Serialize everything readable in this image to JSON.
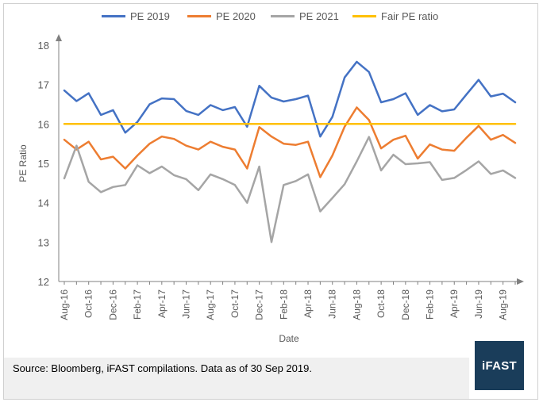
{
  "chart_data": {
    "type": "line",
    "title": "",
    "xlabel": "Date",
    "ylabel": "PE Ratio",
    "ylim": [
      12,
      18
    ],
    "yticks": [
      "12",
      "13",
      "14",
      "15",
      "16",
      "17",
      "18"
    ],
    "x": [
      "Aug-16",
      "Sep-16",
      "Oct-16",
      "Nov-16",
      "Dec-16",
      "Jan-17",
      "Feb-17",
      "Mar-17",
      "Apr-17",
      "May-17",
      "Jun-17",
      "Jul-17",
      "Aug-17",
      "Sep-17",
      "Oct-17",
      "Nov-17",
      "Dec-17",
      "Jan-18",
      "Feb-18",
      "Mar-18",
      "Apr-18",
      "May-18",
      "Jun-18",
      "Jul-18",
      "Aug-18",
      "Sep-18",
      "Oct-18",
      "Nov-18",
      "Dec-18",
      "Jan-19",
      "Feb-19",
      "Mar-19",
      "Apr-19",
      "May-19",
      "Jun-19",
      "Jul-19",
      "Aug-19",
      "Sep-19"
    ],
    "xtick_labels": [
      "Aug-16",
      "Oct-16",
      "Dec-16",
      "Feb-17",
      "Apr-17",
      "Jun-17",
      "Aug-17",
      "Oct-17",
      "Dec-17",
      "Feb-18",
      "Apr-18",
      "Jun-18",
      "Aug-18",
      "Oct-18",
      "Dec-18",
      "Feb-19",
      "Apr-19",
      "Jun-19",
      "Aug-19"
    ],
    "legend_position": "top",
    "grid": false,
    "series": [
      {
        "name": "PE 2019",
        "color": "#4472c4",
        "values": [
          16.85,
          16.58,
          16.78,
          16.23,
          16.35,
          15.78,
          16.05,
          16.5,
          16.65,
          16.63,
          16.33,
          16.23,
          16.48,
          16.35,
          16.43,
          15.93,
          16.97,
          16.67,
          16.57,
          16.63,
          16.72,
          15.68,
          16.18,
          17.18,
          17.58,
          17.32,
          16.55,
          16.63,
          16.78,
          16.23,
          16.48,
          16.32,
          16.37,
          16.75,
          17.12,
          16.7,
          16.77,
          16.55
        ]
      },
      {
        "name": "PE 2020",
        "color": "#ed7d31",
        "values": [
          15.6,
          15.35,
          15.55,
          15.1,
          15.17,
          14.87,
          15.2,
          15.5,
          15.68,
          15.62,
          15.45,
          15.35,
          15.55,
          15.42,
          15.35,
          14.87,
          15.92,
          15.68,
          15.5,
          15.47,
          15.55,
          14.65,
          15.2,
          15.93,
          16.42,
          16.1,
          15.38,
          15.6,
          15.7,
          15.12,
          15.48,
          15.35,
          15.32,
          15.65,
          15.95,
          15.6,
          15.72,
          15.52
        ]
      },
      {
        "name": "PE 2021",
        "color": "#a5a5a5",
        "values": [
          14.62,
          15.45,
          14.53,
          14.27,
          14.4,
          14.45,
          14.95,
          14.75,
          14.92,
          14.7,
          14.6,
          14.32,
          14.72,
          14.6,
          14.45,
          14.0,
          14.92,
          13.0,
          14.45,
          14.55,
          14.72,
          13.78,
          14.12,
          14.47,
          15.05,
          15.67,
          14.82,
          15.22,
          14.98,
          15.0,
          15.03,
          14.58,
          14.63,
          14.83,
          15.05,
          14.73,
          14.82,
          14.63
        ]
      },
      {
        "name": "Fair PE ratio",
        "color": "#ffc000",
        "values": [
          16,
          16,
          16,
          16,
          16,
          16,
          16,
          16,
          16,
          16,
          16,
          16,
          16,
          16,
          16,
          16,
          16,
          16,
          16,
          16,
          16,
          16,
          16,
          16,
          16,
          16,
          16,
          16,
          16,
          16,
          16,
          16,
          16,
          16,
          16,
          16,
          16,
          16
        ]
      }
    ]
  },
  "footer": {
    "source": "Source: Bloomberg, iFAST compilations. Data as of 30 Sep 2019.",
    "logo_text": "iFAST",
    "logo_color": "#1a3d5a"
  }
}
